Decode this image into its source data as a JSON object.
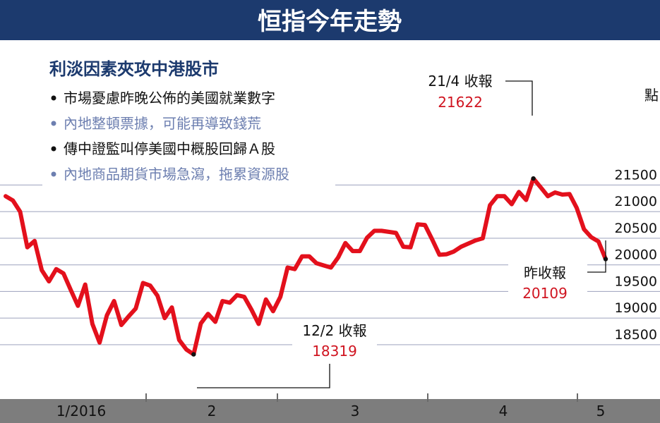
{
  "header": {
    "title": "恒指今年走勢"
  },
  "info_box": {
    "heading": "利淡因素夾攻中港股市",
    "bullets": [
      {
        "text": "市場憂慮昨晚公佈的美國就業數字",
        "color": "#111111"
      },
      {
        "text": "內地整頓票據，可能再導致錢荒",
        "color": "#6d7fb0"
      },
      {
        "text": "傳中證監叫停美國中概股回歸Ａ股",
        "color": "#111111"
      },
      {
        "text": "內地商品期貨市場急瀉，拖累資源股",
        "color": "#6d7fb0"
      }
    ]
  },
  "callouts": {
    "low": {
      "label": "12/2 收報",
      "value": "18319"
    },
    "high": {
      "label": "21/4 收報",
      "value": "21622"
    },
    "last": {
      "label": "昨收報",
      "value": "20109"
    }
  },
  "colors": {
    "header_bg": "#1c3a6e",
    "line": "#e3101c",
    "grid": "#a7acc4",
    "axis_bar": "#7d7d7d",
    "value_text": "#d01420",
    "muted_bullet": "#6d7fb0"
  },
  "chart_data": {
    "type": "line",
    "title": "恒指今年走勢",
    "ylabel": "點",
    "ylim": [
      18200,
      21900
    ],
    "yticks": [
      18500,
      19000,
      19500,
      20000,
      20500,
      21000,
      21500
    ],
    "ytick_labels": [
      "18500",
      "19000",
      "19500",
      "20000",
      "20500",
      "21000",
      "21500"
    ],
    "month_labels": [
      "1/2016",
      "2",
      "3",
      "4",
      "5"
    ],
    "grid": true,
    "series": [
      {
        "values": [
          21290,
          21210,
          21000,
          20330,
          20450,
          19900,
          19690,
          19920,
          19840,
          19530,
          19230,
          19630,
          18890,
          18540,
          19050,
          19320,
          18870,
          19030,
          19180,
          19660,
          19610,
          19420,
          19000,
          19200,
          18590,
          18410,
          18319,
          18900,
          19080,
          18930,
          19320,
          19290,
          19430,
          19400,
          19160,
          18890,
          19350,
          19130,
          19400,
          19950,
          19920,
          20160,
          20160,
          20030,
          19990,
          19950,
          20140,
          20410,
          20260,
          20260,
          20510,
          20640,
          20640,
          20620,
          20600,
          20340,
          20330,
          20760,
          20750,
          20480,
          20190,
          20200,
          20250,
          20340,
          20400,
          20460,
          20500,
          21120,
          21290,
          21290,
          21140,
          21370,
          21220,
          21622,
          21460,
          21290,
          21360,
          21320,
          21330,
          21070,
          20670,
          20520,
          20440,
          20109
        ]
      }
    ]
  }
}
